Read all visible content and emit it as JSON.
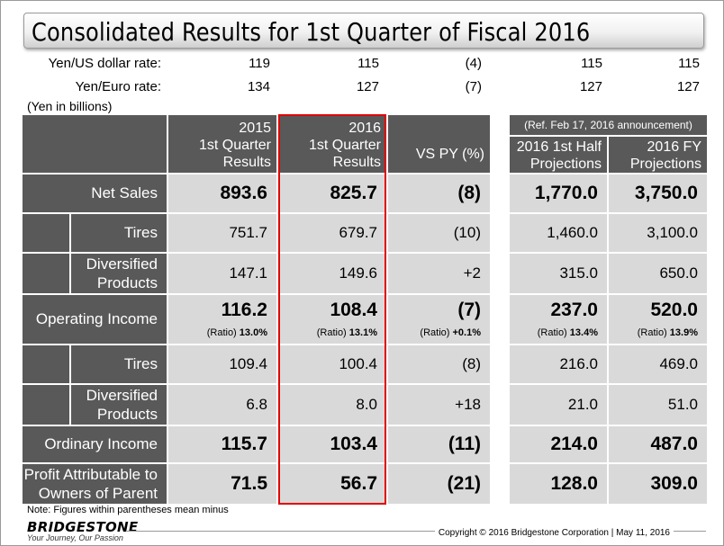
{
  "title": "Consolidated Results for 1st Quarter of Fiscal 2016",
  "rates": [
    {
      "label": "Yen/US dollar rate:",
      "values": [
        "119",
        "115",
        "(4)",
        "115",
        "115"
      ]
    },
    {
      "label": "Yen/Euro rate:",
      "values": [
        "134",
        "127",
        "(7)",
        "127",
        "127"
      ]
    }
  ],
  "unit_note": "(Yen in billions)",
  "headers": {
    "col2015": [
      "2015",
      "1st Quarter",
      "Results"
    ],
    "col2016": [
      "2016",
      "1st Quarter",
      "Results"
    ],
    "vspy": "VS PY (%)",
    "ref": "(Ref.  Feb 17, 2016 announcement)",
    "half": [
      "2016 1st Half",
      "Projections"
    ],
    "fy": [
      "2016  FY",
      "Projections"
    ]
  },
  "rows": {
    "net_sales": {
      "label": "Net Sales",
      "values": [
        "893.6",
        "825.7",
        "(8)",
        "1,770.0",
        "3,750.0"
      ]
    },
    "ns_tires": {
      "label": "Tires",
      "values": [
        "751.7",
        "679.7",
        "(10)",
        "1,460.0",
        "3,100.0"
      ]
    },
    "ns_div": {
      "label": [
        "Diversified",
        "Products"
      ],
      "values": [
        "147.1",
        "149.6",
        "+2",
        "315.0",
        "650.0"
      ]
    },
    "op_income": {
      "label": "Operating Income",
      "values": [
        "116.2",
        "108.4",
        "(7)",
        "237.0",
        "520.0"
      ],
      "ratio_label": "(Ratio)",
      "ratios": [
        "13.0%",
        "13.1%",
        "+0.1%",
        "13.4%",
        "13.9%"
      ]
    },
    "oi_tires": {
      "label": "Tires",
      "values": [
        "109.4",
        "100.4",
        "(8)",
        "216.0",
        "469.0"
      ]
    },
    "oi_div": {
      "label": [
        "Diversified",
        "Products"
      ],
      "values": [
        "6.8",
        "8.0",
        "+18",
        "21.0",
        "51.0"
      ]
    },
    "ord_income": {
      "label": "Ordinary Income",
      "values": [
        "115.7",
        "103.4",
        "(11)",
        "214.0",
        "487.0"
      ]
    },
    "profit": {
      "label": [
        "Profit Attributable to",
        "Owners of Parent"
      ],
      "values": [
        "71.5",
        "56.7",
        "(21)",
        "128.0",
        "309.0"
      ]
    }
  },
  "note": "Note: Figures within parentheses mean minus",
  "logo": {
    "word": "BRIDGESTONE",
    "tagline": "Your Journey, Our Passion"
  },
  "copyright": "Copyright © 2016 Bridgestone Corporation  |  May 11, 2016",
  "colors": {
    "dark": "#595959",
    "light": "#d9d9d9",
    "highlight": "#e00000"
  }
}
